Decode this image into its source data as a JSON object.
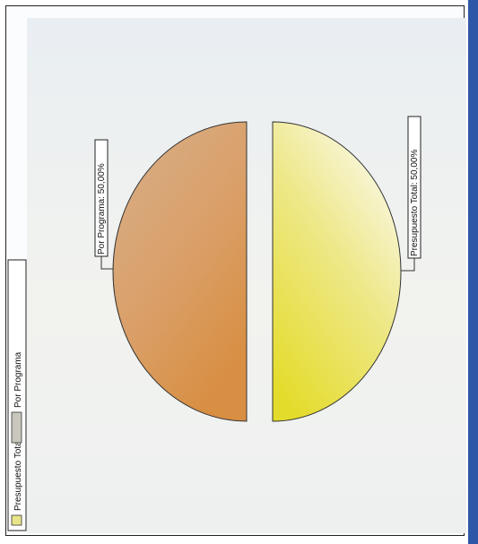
{
  "chart_data": {
    "type": "pie",
    "slices": [
      {
        "name": "Presupuesto Total",
        "value": 50.0,
        "label": "Presupuesto Total: 50,00%",
        "color": "#e8df4a"
      },
      {
        "name": "Por Programa",
        "value": 50.0,
        "label": "Por Programa: 50,00%",
        "color": "#d9a468"
      }
    ],
    "legend": {
      "placement": "left",
      "entries": [
        "Presupuesto Total",
        "Por Programa"
      ]
    },
    "exploded": true,
    "rotation": "image rotated 90 degrees"
  }
}
